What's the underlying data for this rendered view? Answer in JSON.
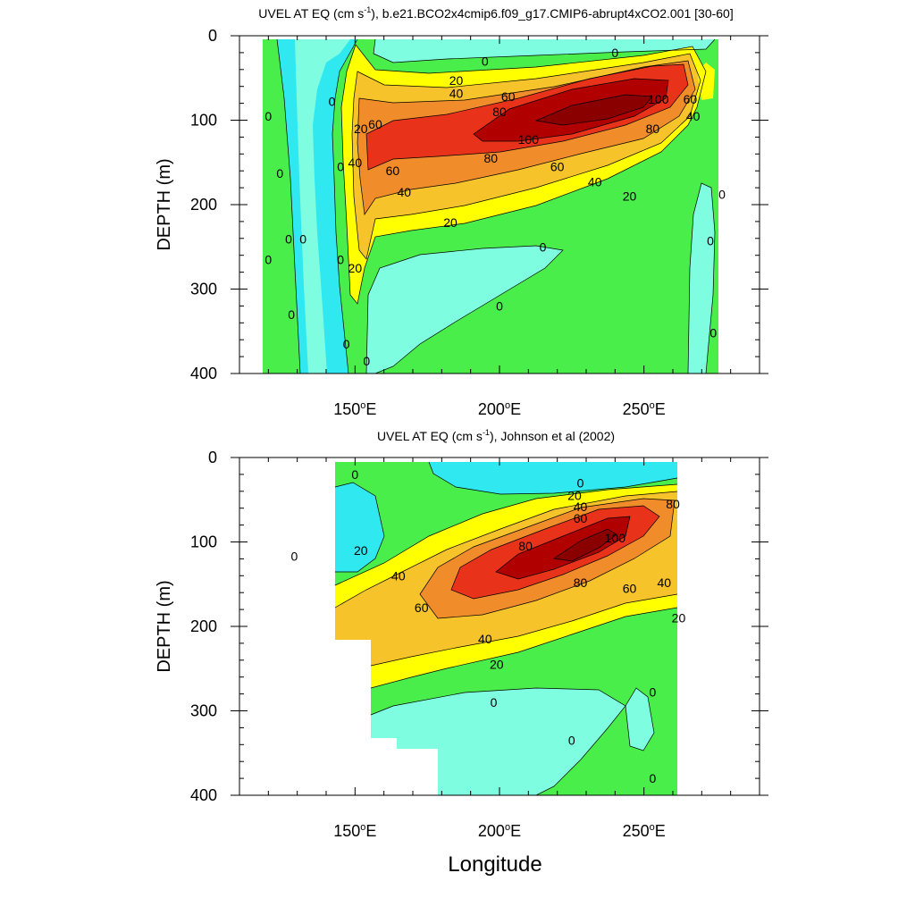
{
  "figure": {
    "xlabel": "Longitude",
    "colors": {
      "c_neg": "#7ffde0",
      "c_neg2": "#2fe8f0",
      "c_0": "#49ee4a",
      "c_20": "#ffff00",
      "c_40": "#f7c32a",
      "c_60": "#f08c2a",
      "c_80": "#e8321a",
      "c_100": "#b00000",
      "line": "#000000"
    }
  },
  "chart_data": [
    {
      "type": "heatmap",
      "title": "UVEL AT EQ (cm s-1), b.e21.BCO2x4cmip6.f09_g17.CMIP6-abrupt4xCO2.001 [30-60]",
      "title_main": "UVEL AT EQ (cm s",
      "title_sup": "-1",
      "title_tail": "), b.e21.BCO2x4cmip6.f09_g17.CMIP6-abrupt4xCO2.001 [30-60]",
      "ylabel": "DEPTH (m)",
      "xlabel": "",
      "xlim": [
        110,
        290
      ],
      "ylim": [
        0,
        400
      ],
      "y_reversed": true,
      "x_ticks": [
        {
          "value": 150,
          "label": "150",
          "sup": "o",
          "suffix": "E"
        },
        {
          "value": 200,
          "label": "200",
          "sup": "o",
          "suffix": "E"
        },
        {
          "value": 250,
          "label": "250",
          "sup": "o",
          "suffix": "E"
        }
      ],
      "y_ticks": [
        0,
        100,
        200,
        300,
        400
      ],
      "contour_levels": [
        0,
        20,
        40,
        60,
        80,
        100
      ],
      "features": [
        {
          "kind": "core_max",
          "lon": 232,
          "depth": 100,
          "value": 100
        },
        {
          "kind": "contour_80",
          "lon_range": [
            180,
            262
          ],
          "depth_range": [
            75,
            140
          ]
        },
        {
          "kind": "contour_60",
          "lon_range": [
            163,
            266
          ],
          "depth_range": [
            60,
            170
          ]
        },
        {
          "kind": "contour_40",
          "lon_range": [
            152,
            268
          ],
          "depth_range": [
            50,
            210
          ]
        },
        {
          "kind": "contour_20",
          "lon_range": [
            149,
            270
          ],
          "depth_range": [
            45,
            250
          ]
        },
        {
          "kind": "undercurrent_0_region",
          "lon_range": [
            118,
            280
          ],
          "depth_range": [
            5,
            410
          ]
        },
        {
          "kind": "negative_region",
          "lon": 205,
          "depth": 330
        }
      ],
      "contour_labels": [
        {
          "text": "0",
          "lon": 195,
          "depth": 30
        },
        {
          "text": "0",
          "lon": 240,
          "depth": 20
        },
        {
          "text": "20",
          "lon": 185,
          "depth": 53
        },
        {
          "text": "40",
          "lon": 185,
          "depth": 68
        },
        {
          "text": "60",
          "lon": 203,
          "depth": 72
        },
        {
          "text": "80",
          "lon": 200,
          "depth": 90
        },
        {
          "text": "100",
          "lon": 255,
          "depth": 75
        },
        {
          "text": "100",
          "lon": 210,
          "depth": 123
        },
        {
          "text": "80",
          "lon": 253,
          "depth": 110
        },
        {
          "text": "60",
          "lon": 266,
          "depth": 75
        },
        {
          "text": "40",
          "lon": 267,
          "depth": 95
        },
        {
          "text": "20",
          "lon": 152,
          "depth": 110
        },
        {
          "text": "60",
          "lon": 157,
          "depth": 105
        },
        {
          "text": "40",
          "lon": 150,
          "depth": 150
        },
        {
          "text": "80",
          "lon": 197,
          "depth": 145
        },
        {
          "text": "60",
          "lon": 220,
          "depth": 155
        },
        {
          "text": "60",
          "lon": 163,
          "depth": 160
        },
        {
          "text": "40",
          "lon": 233,
          "depth": 173
        },
        {
          "text": "40",
          "lon": 167,
          "depth": 185
        },
        {
          "text": "20",
          "lon": 245,
          "depth": 190
        },
        {
          "text": "20",
          "lon": 183,
          "depth": 221
        },
        {
          "text": "0",
          "lon": 215,
          "depth": 250
        },
        {
          "text": "0",
          "lon": 200,
          "depth": 320
        },
        {
          "text": "20",
          "lon": 150,
          "depth": 275
        },
        {
          "text": "0",
          "lon": 120,
          "depth": 95
        },
        {
          "text": "0",
          "lon": 124,
          "depth": 163
        },
        {
          "text": "0",
          "lon": 127,
          "depth": 241
        },
        {
          "text": "0",
          "lon": 132,
          "depth": 241
        },
        {
          "text": "0",
          "lon": 120,
          "depth": 265
        },
        {
          "text": "0",
          "lon": 128,
          "depth": 330
        },
        {
          "text": "0",
          "lon": 142,
          "depth": 78
        },
        {
          "text": "0",
          "lon": 145,
          "depth": 155
        },
        {
          "text": "0",
          "lon": 145,
          "depth": 265
        },
        {
          "text": "0",
          "lon": 147,
          "depth": 365
        },
        {
          "text": "0",
          "lon": 154,
          "depth": 385
        },
        {
          "text": "0",
          "lon": 277,
          "depth": 188
        },
        {
          "text": "0",
          "lon": 273,
          "depth": 243
        },
        {
          "text": "0",
          "lon": 274,
          "depth": 352
        }
      ]
    },
    {
      "type": "heatmap",
      "title": "UVEL AT EQ (cm s-1), Johnson et al (2002)",
      "title_main": "UVEL AT EQ (cm s",
      "title_sup": "-1",
      "title_tail": "), Johnson et al (2002)",
      "ylabel": "DEPTH (m)",
      "xlabel": "Longitude",
      "xlim": [
        110,
        290
      ],
      "ylim": [
        0,
        400
      ],
      "y_reversed": true,
      "x_ticks": [
        {
          "value": 150,
          "label": "150",
          "sup": "o",
          "suffix": "E"
        },
        {
          "value": 200,
          "label": "200",
          "sup": "o",
          "suffix": "E"
        },
        {
          "value": 250,
          "label": "250",
          "sup": "o",
          "suffix": "E"
        }
      ],
      "y_ticks": [
        0,
        100,
        200,
        300,
        400
      ],
      "contour_levels": [
        0,
        20,
        40,
        60,
        80,
        100
      ],
      "features": [
        {
          "kind": "core_max",
          "lon": 233,
          "depth": 95,
          "value": 100
        },
        {
          "kind": "contour_80",
          "lon_range": [
            190,
            258
          ],
          "depth_range": [
            60,
            160
          ]
        },
        {
          "kind": "contour_60",
          "lon_range": [
            176,
            262
          ],
          "depth_range": [
            50,
            195
          ]
        },
        {
          "kind": "contour_40",
          "lon_range": [
            143,
            264
          ],
          "depth_range": [
            40,
            230
          ]
        },
        {
          "kind": "contour_20",
          "lon_range": [
            143,
            264
          ],
          "depth_range": [
            35,
            250
          ]
        },
        {
          "kind": "data_extent",
          "lon_range": [
            143,
            264
          ],
          "depth_range": [
            5,
            400
          ]
        }
      ],
      "contour_labels": [
        {
          "text": "0",
          "lon": 150,
          "depth": 20
        },
        {
          "text": "0",
          "lon": 129,
          "depth": 117
        },
        {
          "text": "0",
          "lon": 228,
          "depth": 30
        },
        {
          "text": "20",
          "lon": 226,
          "depth": 45
        },
        {
          "text": "40",
          "lon": 228,
          "depth": 58
        },
        {
          "text": "60",
          "lon": 228,
          "depth": 72
        },
        {
          "text": "80",
          "lon": 260,
          "depth": 55
        },
        {
          "text": "20",
          "lon": 152,
          "depth": 110
        },
        {
          "text": "80",
          "lon": 209,
          "depth": 105
        },
        {
          "text": "100",
          "lon": 240,
          "depth": 95
        },
        {
          "text": "40",
          "lon": 165,
          "depth": 140
        },
        {
          "text": "80",
          "lon": 228,
          "depth": 148
        },
        {
          "text": "60",
          "lon": 245,
          "depth": 155
        },
        {
          "text": "40",
          "lon": 257,
          "depth": 148
        },
        {
          "text": "60",
          "lon": 173,
          "depth": 178
        },
        {
          "text": "20",
          "lon": 262,
          "depth": 190
        },
        {
          "text": "40",
          "lon": 195,
          "depth": 215
        },
        {
          "text": "20",
          "lon": 199,
          "depth": 245
        },
        {
          "text": "0",
          "lon": 198,
          "depth": 290
        },
        {
          "text": "0",
          "lon": 253,
          "depth": 278
        },
        {
          "text": "0",
          "lon": 225,
          "depth": 335
        },
        {
          "text": "0",
          "lon": 253,
          "depth": 380
        }
      ]
    }
  ]
}
